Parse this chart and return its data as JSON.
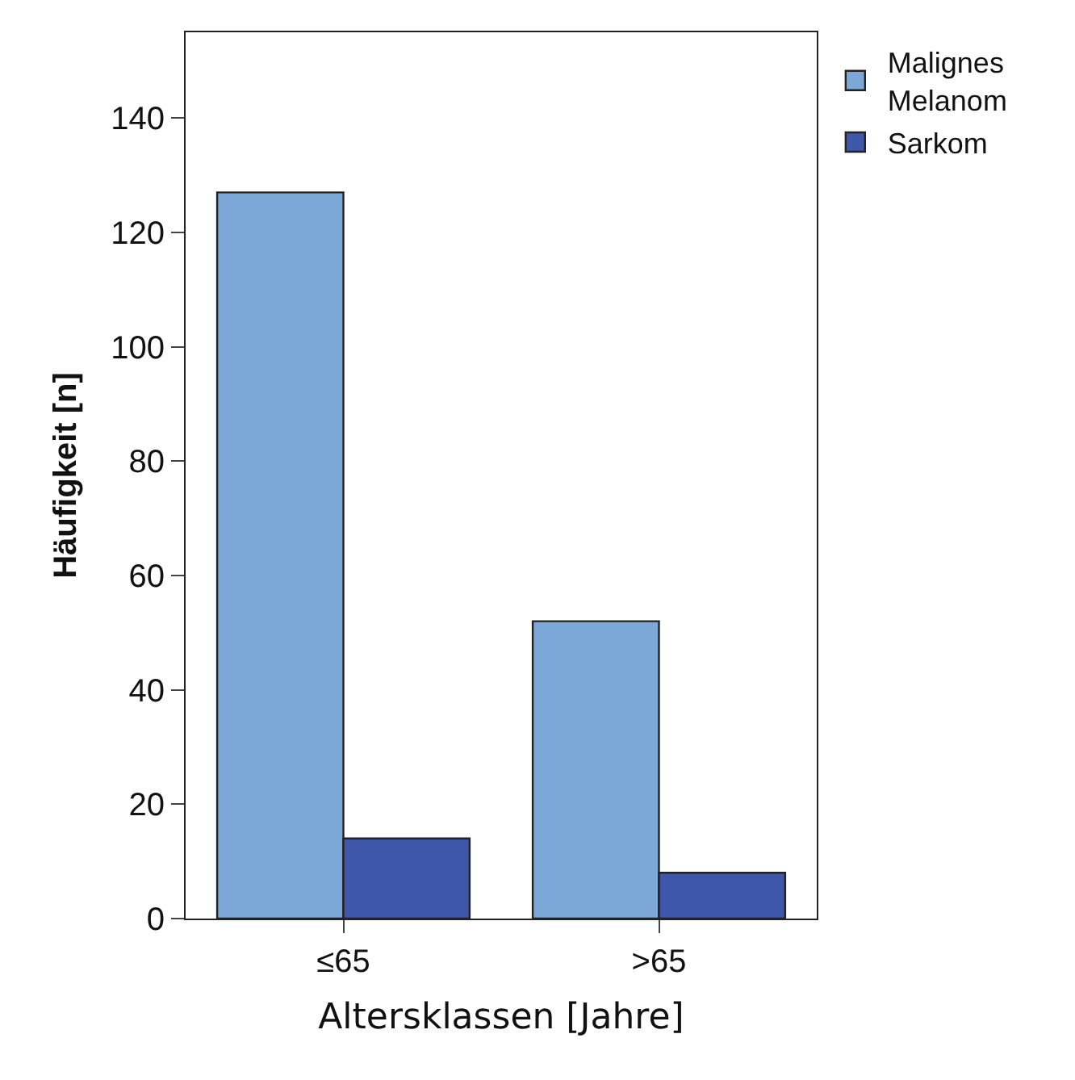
{
  "chart_data": {
    "type": "bar",
    "xlabel": "Altersklassen [Jahre]",
    "ylabel": "Häufigkeit [n]",
    "categories": [
      "≤65",
      ">65"
    ],
    "series": [
      {
        "name": "Malignes Melanom",
        "color": "#7ba8d6",
        "values": [
          127,
          52
        ]
      },
      {
        "name": "Sarkom",
        "color": "#3f57a8",
        "values": [
          14,
          8
        ]
      }
    ],
    "ylim": [
      0,
      155
    ],
    "yticks": [
      0,
      20,
      40,
      60,
      80,
      100,
      120,
      140
    ],
    "legend": "top right"
  }
}
